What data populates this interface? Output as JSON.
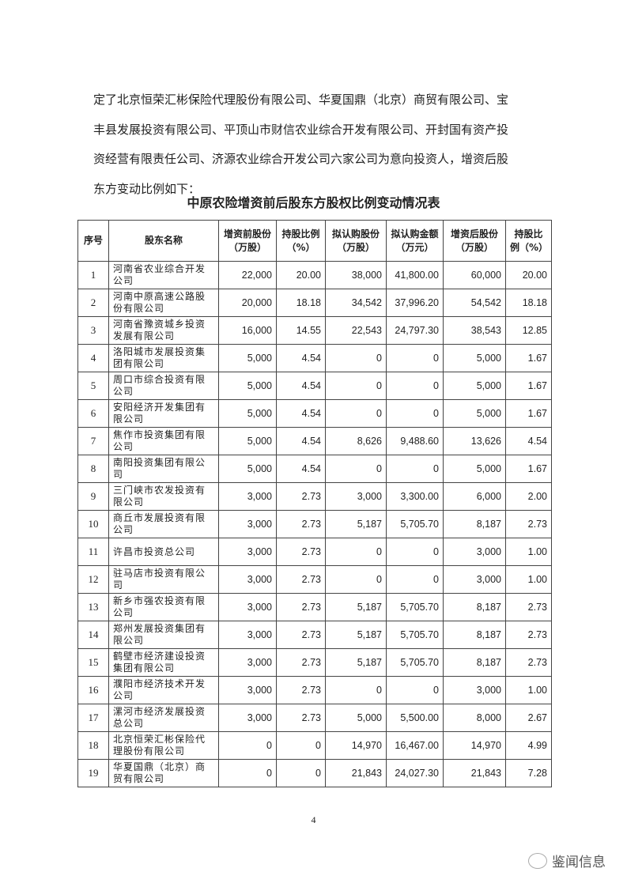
{
  "paragraph": {
    "lines": [
      "定了北京恒荣汇彬保险代理股份有限公司、华夏国鼎（北京）商贸有限公司、宝",
      "丰县发展投资有限公司、平顶山市财信农业综合开发有限公司、开封国有资产投",
      "资经营有限责任公司、济源农业综合开发公司六家公司为意向投资人，增资后股",
      "东方变动比例如下："
    ]
  },
  "table": {
    "title": "中原农险增资前后股东方股权比例变动情况表",
    "headers": [
      "序号",
      "股东名称",
      "增资前股份（万股）",
      "持股比例（%）",
      "拟认购股份（万股）",
      "拟认购金额（万元）",
      "增资后股份（万股）",
      "持股比例（%）"
    ],
    "rows": [
      [
        "1",
        "河南省农业综合开发公司",
        "22,000",
        "20.00",
        "38,000",
        "41,800.00",
        "60,000",
        "20.00"
      ],
      [
        "2",
        "河南中原高速公路股份有限公司",
        "20,000",
        "18.18",
        "34,542",
        "37,996.20",
        "54,542",
        "18.18"
      ],
      [
        "3",
        "河南省豫资城乡投资发展有限公司",
        "16,000",
        "14.55",
        "22,543",
        "24,797.30",
        "38,543",
        "12.85"
      ],
      [
        "4",
        "洛阳城市发展投资集团有限公司",
        "5,000",
        "4.54",
        "0",
        "0",
        "5,000",
        "1.67"
      ],
      [
        "5",
        "周口市综合投资有限公司",
        "5,000",
        "4.54",
        "0",
        "0",
        "5,000",
        "1.67"
      ],
      [
        "6",
        "安阳经济开发集团有限公司",
        "5,000",
        "4.54",
        "0",
        "0",
        "5,000",
        "1.67"
      ],
      [
        "7",
        "焦作市投资集团有限公司",
        "5,000",
        "4.54",
        "8,626",
        "9,488.60",
        "13,626",
        "4.54"
      ],
      [
        "8",
        "南阳投资集团有限公司",
        "5,000",
        "4.54",
        "0",
        "0",
        "5,000",
        "1.67"
      ],
      [
        "9",
        "三门峡市农发投资有限公司",
        "3,000",
        "2.73",
        "3,000",
        "3,300.00",
        "6,000",
        "2.00"
      ],
      [
        "10",
        "商丘市发展投资有限公司",
        "3,000",
        "2.73",
        "5,187",
        "5,705.70",
        "8,187",
        "2.73"
      ],
      [
        "11",
        "许昌市投资总公司",
        "3,000",
        "2.73",
        "0",
        "0",
        "3,000",
        "1.00"
      ],
      [
        "12",
        "驻马店市投资有限公司",
        "3,000",
        "2.73",
        "0",
        "0",
        "3,000",
        "1.00"
      ],
      [
        "13",
        "新乡市强农投资有限公司",
        "3,000",
        "2.73",
        "5,187",
        "5,705.70",
        "8,187",
        "2.73"
      ],
      [
        "14",
        "郑州发展投资集团有限公司",
        "3,000",
        "2.73",
        "5,187",
        "5,705.70",
        "8,187",
        "2.73"
      ],
      [
        "15",
        "鹤壁市经济建设投资集团有限公司",
        "3,000",
        "2.73",
        "5,187",
        "5,705.70",
        "8,187",
        "2.73"
      ],
      [
        "16",
        "濮阳市经济技术开发公司",
        "3,000",
        "2.73",
        "0",
        "0",
        "3,000",
        "1.00"
      ],
      [
        "17",
        "漯河市经济发展投资总公司",
        "3,000",
        "2.73",
        "5,000",
        "5,500.00",
        "8,000",
        "2.67"
      ],
      [
        "18",
        "北京恒荣汇彬保险代理股份有限公司",
        "0",
        "0",
        "14,970",
        "16,467.00",
        "14,970",
        "4.99"
      ],
      [
        "19",
        "华夏国鼎（北京）商贸有限公司",
        "0",
        "0",
        "21,843",
        "24,027.30",
        "21,843",
        "7.28"
      ]
    ]
  },
  "page_number": "4",
  "watermark": {
    "text": "鉴闻信息",
    "icon": "wechat-icon"
  }
}
